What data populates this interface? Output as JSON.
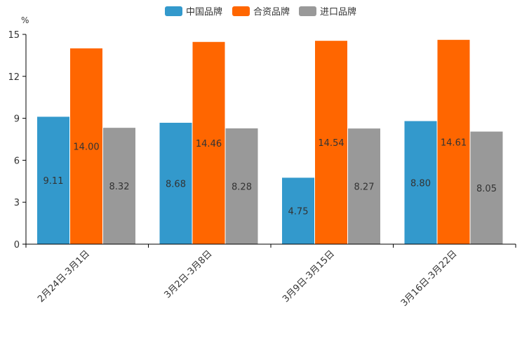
{
  "chart_data": {
    "type": "bar",
    "title": "",
    "xlabel": "",
    "ylabel": "%",
    "ylim": [
      0,
      15
    ],
    "yticks": [
      "0",
      "3",
      "6",
      "9",
      "12",
      "15"
    ],
    "categories": [
      "2月24日-3月1日",
      "3月2日-3月8日",
      "3月9日-3月15日",
      "3月16日-3月22日"
    ],
    "series": [
      {
        "name": "中国品牌",
        "color": "#3399cc",
        "values": [
          9.11,
          8.68,
          4.75,
          8.8
        ],
        "labels": [
          "9.11",
          "8.68",
          "4.75",
          "8.80"
        ]
      },
      {
        "name": "合资品牌",
        "color": "#ff6600",
        "values": [
          14.0,
          14.46,
          14.54,
          14.61
        ],
        "labels": [
          "14.00",
          "14.46",
          "14.54",
          "14.61"
        ]
      },
      {
        "name": "进口品牌",
        "color": "#999999",
        "values": [
          8.32,
          8.28,
          8.27,
          8.05
        ],
        "labels": [
          "8.32",
          "8.28",
          "8.27",
          "8.05"
        ]
      }
    ],
    "legend_position": "top-center",
    "grid": false
  }
}
